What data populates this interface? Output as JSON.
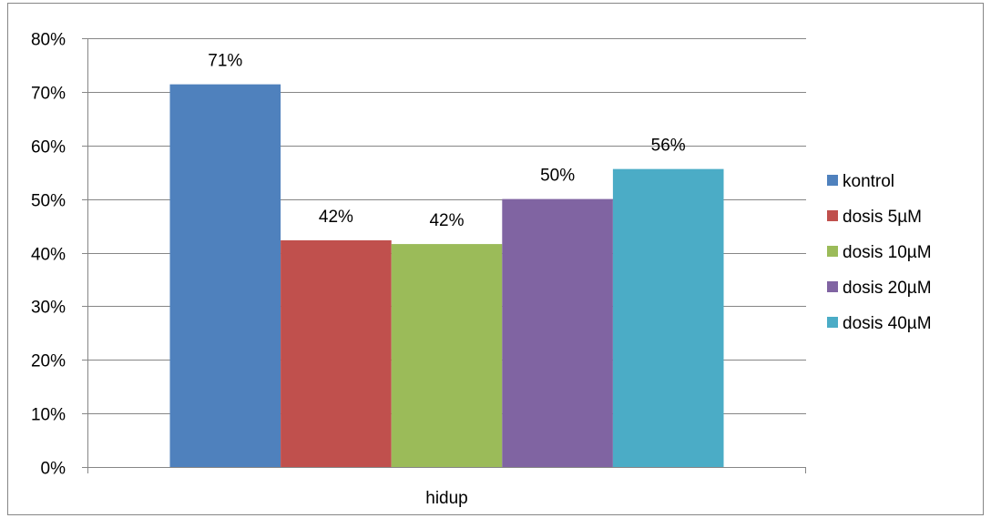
{
  "chart_data": {
    "type": "bar",
    "categories": [
      "hidup"
    ],
    "series": [
      {
        "name": "kontrol",
        "values": [
          71.4
        ],
        "label": "71%",
        "color": "#4F81BD"
      },
      {
        "name": "dosis 5µM",
        "values": [
          42.3
        ],
        "label": "42%",
        "color": "#C0504D"
      },
      {
        "name": "dosis 10µM",
        "values": [
          41.6
        ],
        "label": "42%",
        "color": "#9BBB59"
      },
      {
        "name": "dosis 20µM",
        "values": [
          50.0
        ],
        "label": "50%",
        "color": "#8064A2"
      },
      {
        "name": "dosis 40µM",
        "values": [
          55.6
        ],
        "label": "56%",
        "color": "#4BACC6"
      }
    ],
    "yticks": [
      "0%",
      "10%",
      "20%",
      "30%",
      "40%",
      "50%",
      "60%",
      "70%",
      "80%"
    ],
    "ylim": [
      0,
      80
    ],
    "grid": true,
    "legend_position": "right",
    "colors": {
      "gridline": "#868686",
      "border": "#868686",
      "background": "#ffffff"
    }
  }
}
